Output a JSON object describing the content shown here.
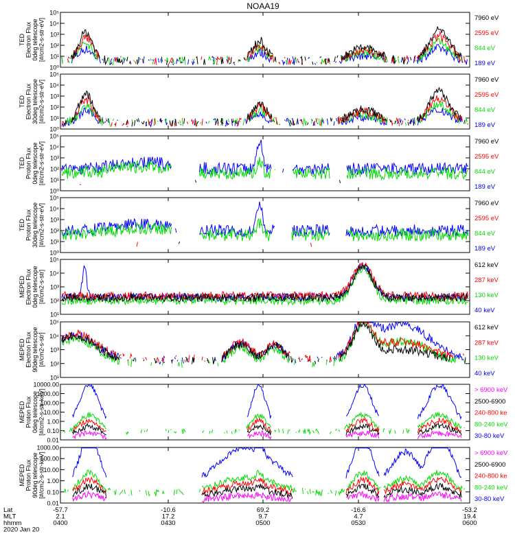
{
  "title": "NOAA19",
  "panels": [
    {
      "ylabel": [
        "TED",
        "Electron Flux",
        "0deg telescope",
        "[#/cm2-s-str-eV]"
      ],
      "yticks": [
        "10⁰",
        "10¹",
        "10²",
        "10³",
        "10⁴",
        "10⁵"
      ],
      "legend": [
        {
          "label": "7960 eV",
          "color": "#000000"
        },
        {
          "label": "2595 eV",
          "color": "#ff0000"
        },
        {
          "label": "844 eV",
          "color": "#00dd00"
        },
        {
          "label": "189 eV",
          "color": "#0000ff"
        }
      ]
    },
    {
      "ylabel": [
        "TED",
        "Electron Flux",
        "30deg telescope",
        "[#/cm2-s-str-eV]"
      ],
      "yticks": [
        "10⁰",
        "10¹",
        "10²",
        "10³",
        "10⁴",
        "10⁵"
      ],
      "legend": [
        {
          "label": "7960 eV",
          "color": "#000000"
        },
        {
          "label": "2595 eV",
          "color": "#ff0000"
        },
        {
          "label": "844 eV",
          "color": "#00dd00"
        },
        {
          "label": "189 eV",
          "color": "#0000ff"
        }
      ]
    },
    {
      "ylabel": [
        "TED",
        "Proton Flux",
        "0deg telescope",
        "[#/cm2-s-str-eV]"
      ],
      "yticks": [
        "10⁰",
        "10¹",
        "10²",
        "10³",
        "10⁴",
        "10⁵"
      ],
      "legend": [
        {
          "label": "7960 eV",
          "color": "#000000"
        },
        {
          "label": "2595 eV",
          "color": "#ff0000"
        },
        {
          "label": "844 eV",
          "color": "#00dd00"
        },
        {
          "label": "189 eV",
          "color": "#0000ff"
        }
      ]
    },
    {
      "ylabel": [
        "TED",
        "Proton Flux",
        "30deg telescope",
        "[#/cm2-s-str-eV]"
      ],
      "yticks": [
        "10⁰",
        "10¹",
        "10²",
        "10³",
        "10⁴",
        "10⁵"
      ],
      "legend": [
        {
          "label": "7960 eV",
          "color": "#000000"
        },
        {
          "label": "2595 eV",
          "color": "#ff0000"
        },
        {
          "label": "844 eV",
          "color": "#00dd00"
        },
        {
          "label": "189 eV",
          "color": "#0000ff"
        }
      ]
    },
    {
      "ylabel": [
        "MEPED",
        "Electron Flux",
        "0deg telescope",
        "[#/cm2-s-str]"
      ],
      "yticks": [
        "10¹",
        "10²",
        "10³",
        "10⁴",
        "10⁵"
      ],
      "legend": [
        {
          "label": "612 keV",
          "color": "#000000"
        },
        {
          "label": "287 keV",
          "color": "#ff0000"
        },
        {
          "label": "130 keV",
          "color": "#00dd00"
        },
        {
          "label": "40 keV",
          "color": "#0000ff"
        }
      ]
    },
    {
      "ylabel": [
        "MEPED",
        "Electron Flux",
        "90deg telescope",
        "[#/cm2-s-str]"
      ],
      "yticks": [
        "10¹",
        "10²",
        "10³",
        "10⁴",
        "10⁵"
      ],
      "legend": [
        {
          "label": "612 keV",
          "color": "#000000"
        },
        {
          "label": "287 keV",
          "color": "#ff0000"
        },
        {
          "label": "130 keV",
          "color": "#00dd00"
        },
        {
          "label": "40 keV",
          "color": "#0000ff"
        }
      ]
    },
    {
      "ylabel": [
        "MEPED",
        "Proton Flux",
        "0deg telescope",
        "[#/cm2-s-str-keV]"
      ],
      "yticks": [
        "0.01",
        "0.10",
        "1.00",
        "10.00",
        "100.00",
        "1000.00",
        "10000.00"
      ],
      "legend": [
        {
          "label": "> 6900 keV",
          "color": "#ff00ff"
        },
        {
          "label": "2500-6900",
          "color": "#000000"
        },
        {
          "label": "240-800 ke",
          "color": "#ff0000"
        },
        {
          "label": "80-240 keV",
          "color": "#00dd00"
        },
        {
          "label": "30-80 keV",
          "color": "#0000ff"
        }
      ]
    },
    {
      "ylabel": [
        "MEPED",
        "Proton Flux",
        "90deg telescope",
        "[#/cm2-s-str-keV]"
      ],
      "yticks": [
        "0.01",
        "0.10",
        "1.00",
        "10.00",
        "100.00",
        "1000.00"
      ],
      "legend": [
        {
          "label": "> 6900 keV",
          "color": "#ff00ff"
        },
        {
          "label": "2500-6900",
          "color": "#000000"
        },
        {
          "label": "240-800 ke",
          "color": "#ff0000"
        },
        {
          "label": "80-240 keV",
          "color": "#00dd00"
        },
        {
          "label": "30-80 keV",
          "color": "#0000ff"
        }
      ]
    }
  ],
  "xaxis": {
    "rows": [
      {
        "label": "Lat",
        "values": [
          "-57.7",
          "-10.6",
          "69.2",
          "-16.6",
          "-53.2"
        ]
      },
      {
        "label": "MLT",
        "values": [
          "2.1",
          "17.2",
          "9.7",
          "4.7",
          "19.4"
        ]
      },
      {
        "label": "hhmm",
        "values": [
          "0400",
          "0430",
          "0500",
          "0530",
          "0600"
        ]
      }
    ],
    "date": "2020 Jan 20"
  },
  "chart_data": {
    "type": "line",
    "title": "NOAA19",
    "x": [
      "0400",
      "0430",
      "0500",
      "0530",
      "0600"
    ],
    "x_rows": {
      "Lat": [
        -57.7,
        -10.6,
        69.2,
        -16.6,
        -53.2
      ],
      "MLT": [
        2.1,
        17.2,
        9.7,
        4.7,
        19.4
      ],
      "hhmm": [
        "0400",
        "0430",
        "0500",
        "0530",
        "0600"
      ]
    },
    "date": "2020 Jan 20",
    "panels": [
      {
        "ylabel": "TED Electron Flux 0deg telescope [#/cm2-s-str-eV]",
        "yscale": "log",
        "ylim": [
          1,
          100000
        ],
        "series": [
          "7960 eV",
          "2595 eV",
          "844 eV",
          "189 eV"
        ]
      },
      {
        "ylabel": "TED Electron Flux 30deg telescope [#/cm2-s-str-eV]",
        "yscale": "log",
        "ylim": [
          1,
          100000
        ],
        "series": [
          "7960 eV",
          "2595 eV",
          "844 eV",
          "189 eV"
        ]
      },
      {
        "ylabel": "TED Proton Flux 0deg telescope [#/cm2-s-str-eV]",
        "yscale": "log",
        "ylim": [
          1,
          100000
        ],
        "series": [
          "7960 eV",
          "2595 eV",
          "844 eV",
          "189 eV"
        ]
      },
      {
        "ylabel": "TED Proton Flux 30deg telescope [#/cm2-s-str-eV]",
        "yscale": "log",
        "ylim": [
          1,
          100000
        ],
        "series": [
          "7960 eV",
          "2595 eV",
          "844 eV",
          "189 eV"
        ]
      },
      {
        "ylabel": "MEPED Electron Flux 0deg telescope [#/cm2-s-str]",
        "yscale": "log",
        "ylim": [
          10,
          100000
        ],
        "series": [
          "612 keV",
          "287 keV",
          "130 keV",
          "40 keV"
        ]
      },
      {
        "ylabel": "MEPED Electron Flux 90deg telescope [#/cm2-s-str]",
        "yscale": "log",
        "ylim": [
          10,
          100000
        ],
        "series": [
          "612 keV",
          "287 keV",
          "130 keV",
          "40 keV"
        ]
      },
      {
        "ylabel": "MEPED Proton Flux 0deg telescope [#/cm2-s-str-keV]",
        "yscale": "log",
        "ylim": [
          0.01,
          10000
        ],
        "series": [
          "> 6900 keV",
          "2500-6900",
          "240-800 ke",
          "80-240 keV",
          "30-80 keV"
        ]
      },
      {
        "ylabel": "MEPED Proton Flux 90deg telescope [#/cm2-s-str-keV]",
        "yscale": "log",
        "ylim": [
          0.01,
          1000
        ],
        "series": [
          "> 6900 keV",
          "2500-6900",
          "240-800 ke",
          "80-240 keV",
          "30-80 keV"
        ]
      }
    ]
  }
}
